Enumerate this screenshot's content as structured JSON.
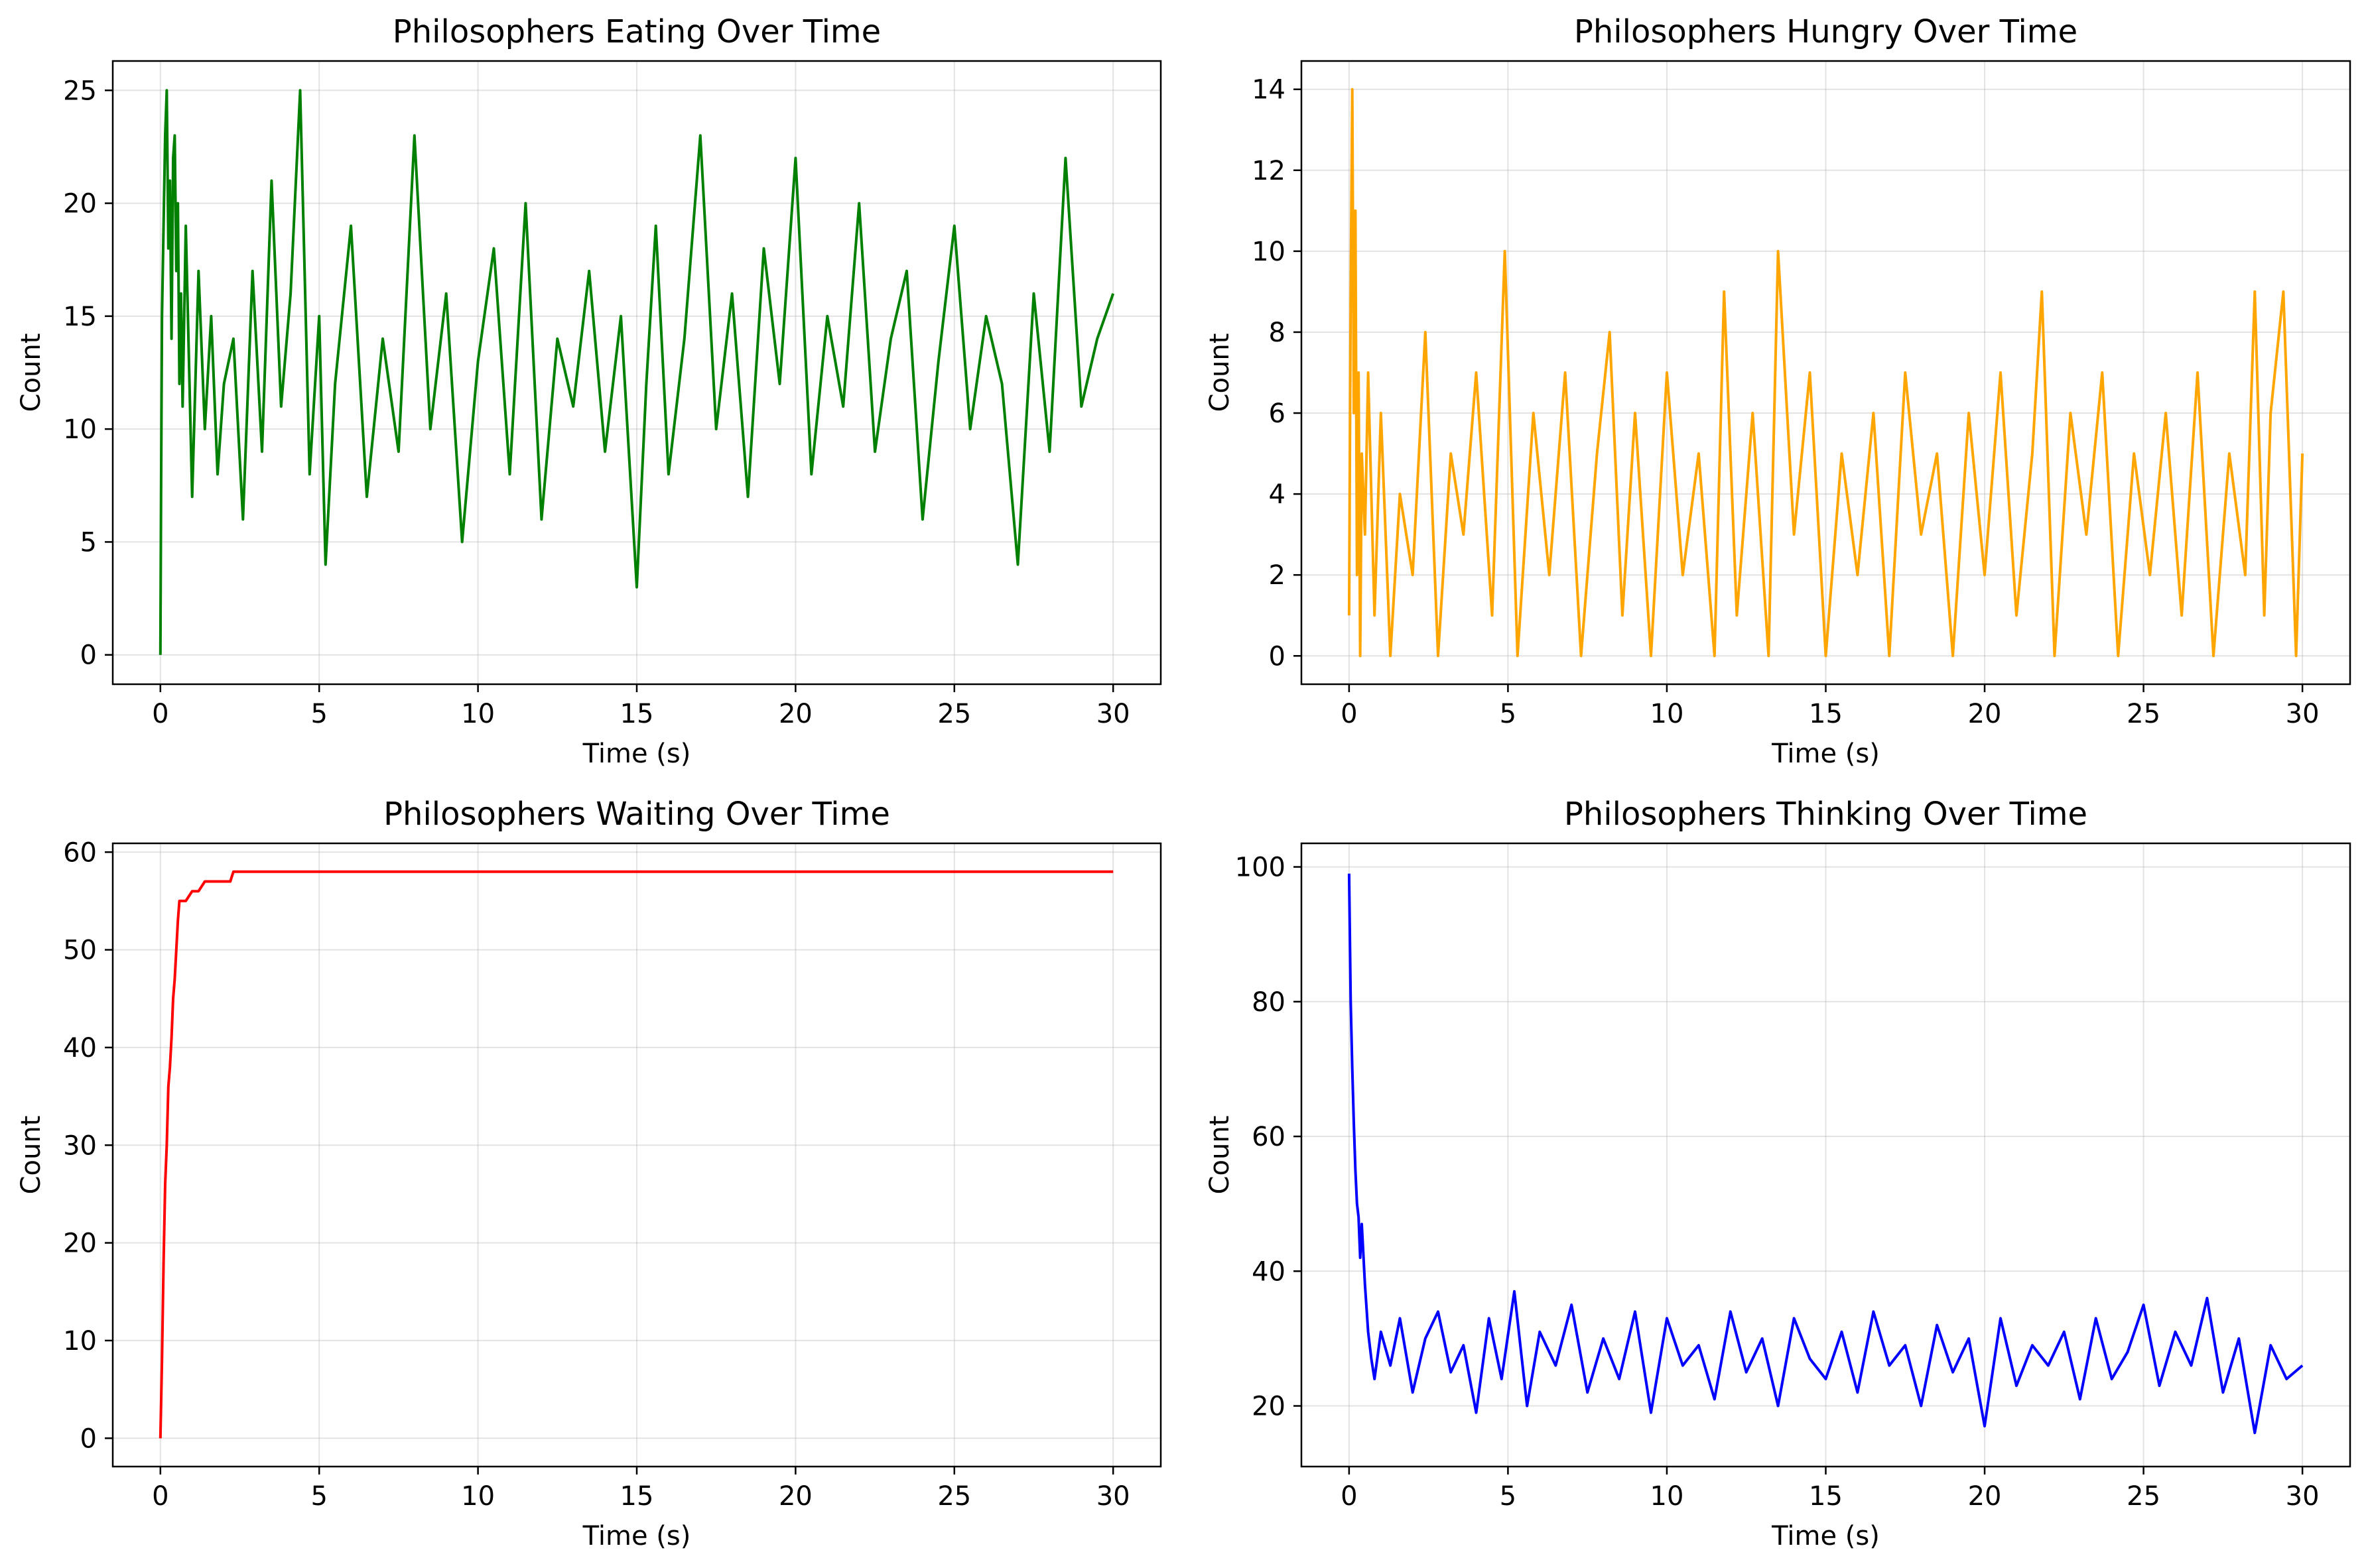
{
  "chart_data": [
    {
      "type": "line",
      "title": "Philosophers Eating Over Time",
      "xlabel": "Time (s)",
      "ylabel": "Count",
      "xlim": [
        -1.5,
        31.5
      ],
      "ylim": [
        -1.3,
        26.3
      ],
      "xticks": [
        0,
        5,
        10,
        15,
        20,
        25,
        30
      ],
      "yticks": [
        0,
        5,
        10,
        15,
        20,
        25
      ],
      "grid": true,
      "color": "#008000",
      "series": [
        {
          "x": [
            0,
            0.02,
            0.05,
            0.1,
            0.15,
            0.2,
            0.25,
            0.3,
            0.35,
            0.4,
            0.45,
            0.5,
            0.55,
            0.6,
            0.65,
            0.7,
            0.8,
            0.9,
            1.0,
            1.2,
            1.4,
            1.6,
            1.8,
            2.0,
            2.3,
            2.6,
            2.9,
            3.2,
            3.5,
            3.8,
            4.1,
            4.4,
            4.7,
            5.0,
            5.2,
            5.5,
            6.0,
            6.5,
            7.0,
            7.5,
            8.0,
            8.5,
            9.0,
            9.5,
            10.0,
            10.5,
            11.0,
            11.5,
            12.0,
            12.5,
            13.0,
            13.5,
            14.0,
            14.5,
            15.0,
            15.3,
            15.6,
            16.0,
            16.5,
            17.0,
            17.5,
            18.0,
            18.5,
            19.0,
            19.5,
            20.0,
            20.5,
            21.0,
            21.5,
            22.0,
            22.5,
            23.0,
            23.5,
            24.0,
            24.5,
            25.0,
            25.5,
            26.0,
            26.5,
            27.0,
            27.5,
            28.0,
            28.5,
            29.0,
            29.5,
            30.0
          ],
          "y": [
            0,
            7,
            15,
            19,
            23,
            25,
            18,
            21,
            14,
            22,
            23,
            17,
            20,
            12,
            16,
            11,
            19,
            13,
            7,
            17,
            10,
            15,
            8,
            12,
            14,
            6,
            17,
            9,
            21,
            11,
            16,
            25,
            8,
            15,
            4,
            12,
            19,
            7,
            14,
            9,
            23,
            10,
            16,
            5,
            13,
            18,
            8,
            20,
            6,
            14,
            11,
            17,
            9,
            15,
            3,
            12,
            19,
            8,
            14,
            23,
            10,
            16,
            7,
            18,
            12,
            22,
            8,
            15,
            11,
            20,
            9,
            14,
            17,
            6,
            13,
            19,
            10,
            15,
            12,
            4,
            16,
            9,
            22,
            11,
            14,
            16
          ]
        }
      ]
    },
    {
      "type": "line",
      "title": "Philosophers Hungry Over Time",
      "xlabel": "Time (s)",
      "ylabel": "Count",
      "xlim": [
        -1.5,
        31.5
      ],
      "ylim": [
        -0.7,
        14.7
      ],
      "xticks": [
        0,
        5,
        10,
        15,
        20,
        25,
        30
      ],
      "yticks": [
        0,
        2,
        4,
        6,
        8,
        10,
        12,
        14
      ],
      "grid": true,
      "color": "#ffa500",
      "series": [
        {
          "x": [
            0,
            0.05,
            0.1,
            0.15,
            0.2,
            0.25,
            0.3,
            0.35,
            0.4,
            0.5,
            0.6,
            0.8,
            1.0,
            1.3,
            1.6,
            2.0,
            2.4,
            2.8,
            3.2,
            3.6,
            4.0,
            4.5,
            4.9,
            5.3,
            5.8,
            6.3,
            6.8,
            7.3,
            7.8,
            8.2,
            8.6,
            9.0,
            9.5,
            10.0,
            10.5,
            11.0,
            11.5,
            11.8,
            12.2,
            12.7,
            13.2,
            13.5,
            14.0,
            14.5,
            15.0,
            15.5,
            16.0,
            16.5,
            17.0,
            17.5,
            18.0,
            18.5,
            19.0,
            19.5,
            20.0,
            20.5,
            21.0,
            21.5,
            21.8,
            22.2,
            22.7,
            23.2,
            23.7,
            24.2,
            24.7,
            25.2,
            25.7,
            26.2,
            26.7,
            27.2,
            27.7,
            28.2,
            28.5,
            28.8,
            29.0,
            29.4,
            29.8,
            30.0
          ],
          "y": [
            1,
            9,
            14,
            6,
            11,
            2,
            7,
            0,
            5,
            3,
            7,
            1,
            6,
            0,
            4,
            2,
            8,
            0,
            5,
            3,
            7,
            1,
            10,
            0,
            6,
            2,
            7,
            0,
            5,
            8,
            1,
            6,
            0,
            7,
            2,
            5,
            0,
            9,
            1,
            6,
            0,
            10,
            3,
            7,
            0,
            5,
            2,
            6,
            0,
            7,
            3,
            5,
            0,
            6,
            2,
            7,
            1,
            5,
            9,
            0,
            6,
            3,
            7,
            0,
            5,
            2,
            6,
            1,
            7,
            0,
            5,
            2,
            9,
            1,
            6,
            9,
            0,
            5
          ]
        }
      ]
    },
    {
      "type": "line",
      "title": "Philosophers Waiting Over Time",
      "xlabel": "Time (s)",
      "ylabel": "Count",
      "xlim": [
        -1.5,
        31.5
      ],
      "ylim": [
        -2.9,
        60.9
      ],
      "xticks": [
        0,
        5,
        10,
        15,
        20,
        25,
        30
      ],
      "yticks": [
        0,
        10,
        20,
        30,
        40,
        50,
        60
      ],
      "grid": true,
      "color": "#ff0000",
      "series": [
        {
          "x": [
            0,
            0.05,
            0.1,
            0.15,
            0.2,
            0.25,
            0.3,
            0.35,
            0.4,
            0.45,
            0.5,
            0.55,
            0.6,
            0.65,
            0.7,
            0.75,
            0.8,
            1.0,
            1.2,
            1.4,
            1.6,
            1.9,
            2.2,
            2.3,
            3.0,
            10.0,
            20.0,
            30.0
          ],
          "y": [
            0,
            8,
            18,
            26,
            30,
            36,
            38,
            41,
            45,
            47,
            50,
            53,
            55,
            55,
            55,
            55,
            55,
            56,
            56,
            57,
            57,
            57,
            57,
            58,
            58,
            58,
            58,
            58
          ]
        }
      ]
    },
    {
      "type": "line",
      "title": "Philosophers Thinking Over Time",
      "xlabel": "Time (s)",
      "ylabel": "Count",
      "xlim": [
        -1.5,
        31.5
      ],
      "ylim": [
        11.0,
        103.5
      ],
      "xticks": [
        0,
        5,
        10,
        15,
        20,
        25,
        30
      ],
      "yticks": [
        20,
        40,
        60,
        80,
        100
      ],
      "grid": true,
      "color": "#0000ff",
      "series": [
        {
          "x": [
            0,
            0.05,
            0.1,
            0.15,
            0.2,
            0.25,
            0.3,
            0.35,
            0.4,
            0.5,
            0.6,
            0.7,
            0.8,
            1.0,
            1.3,
            1.6,
            2.0,
            2.4,
            2.8,
            3.2,
            3.6,
            4.0,
            4.4,
            4.8,
            5.2,
            5.6,
            6.0,
            6.5,
            7.0,
            7.5,
            8.0,
            8.5,
            9.0,
            9.5,
            10.0,
            10.5,
            11.0,
            11.5,
            12.0,
            12.5,
            13.0,
            13.5,
            14.0,
            14.5,
            15.0,
            15.5,
            16.0,
            16.5,
            17.0,
            17.5,
            18.0,
            18.5,
            19.0,
            19.5,
            20.0,
            20.5,
            21.0,
            21.5,
            22.0,
            22.5,
            23.0,
            23.5,
            24.0,
            24.5,
            25.0,
            25.5,
            26.0,
            26.5,
            27.0,
            27.5,
            28.0,
            28.5,
            29.0,
            29.5,
            30.0
          ],
          "y": [
            99,
            80,
            70,
            62,
            55,
            50,
            48,
            42,
            47,
            38,
            31,
            27,
            24,
            31,
            26,
            33,
            22,
            30,
            34,
            25,
            29,
            19,
            33,
            24,
            37,
            20,
            31,
            26,
            35,
            22,
            30,
            24,
            34,
            19,
            33,
            26,
            29,
            21,
            34,
            25,
            30,
            20,
            33,
            27,
            24,
            31,
            22,
            34,
            26,
            29,
            20,
            32,
            25,
            30,
            17,
            33,
            23,
            29,
            26,
            31,
            21,
            33,
            24,
            28,
            35,
            23,
            31,
            26,
            36,
            22,
            30,
            16,
            29,
            24,
            26
          ]
        }
      ]
    }
  ]
}
